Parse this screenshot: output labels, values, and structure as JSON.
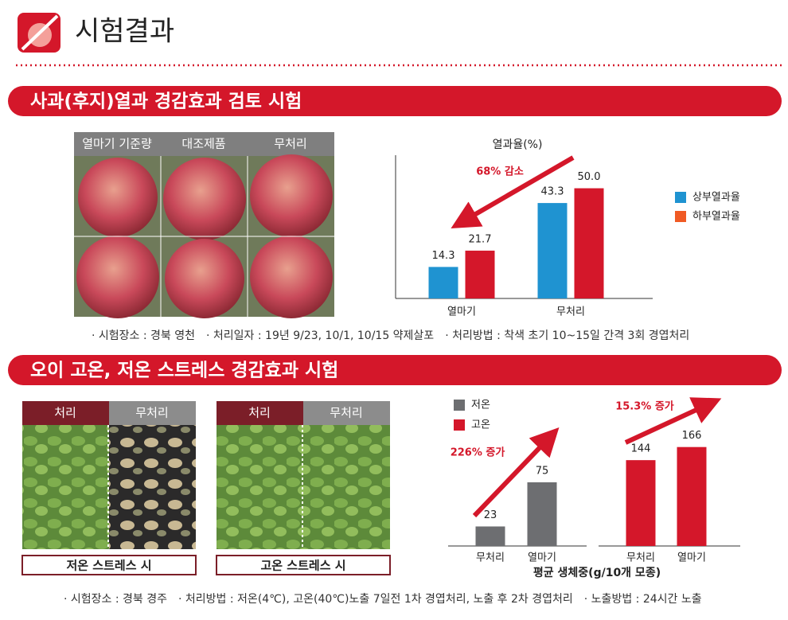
{
  "header": {
    "title": "시험결과"
  },
  "sections": [
    {
      "title": "사과(후지)열과 경감효과 검토 시험",
      "photo_labels": [
        "열마기 기준량",
        "대조제품",
        "무처리"
      ],
      "notes": [
        "· 시험장소 : 경북 영천",
        "· 처리일자 : 19년 9/23, 10/1, 10/15 약제살포",
        "· 처리방법 : 착색 초기 10~15일 간격 3회 경엽처리"
      ]
    },
    {
      "title": "오이 고온, 저온 스트레스 경감효과 시험",
      "photo_panels": [
        {
          "tabs": [
            "처리",
            "무처리"
          ],
          "caption": "저온 스트레스 시"
        },
        {
          "tabs": [
            "처리",
            "무처리"
          ],
          "caption": "고온 스트레스 시"
        }
      ],
      "notes": [
        "· 시험장소 : 경북 경주",
        "· 처리방법 : 저온(4℃), 고온(40℃)노출 7일전 1차 경엽처리, 노출 후 2차 경엽처리",
        "· 노출방법 : 24시간 노출"
      ]
    }
  ],
  "chart_data": [
    {
      "type": "bar",
      "title": "열과율(%)",
      "categories": [
        "열마기",
        "무처리"
      ],
      "series": [
        {
          "name": "상부열과율",
          "color": "#1f93d1",
          "values": [
            14.3,
            43.3
          ]
        },
        {
          "name": "하부열과율",
          "color": "#d4172a",
          "legend_color": "#f05a24",
          "values": [
            21.7,
            50
          ],
          "value_labels": [
            "21.7",
            "50.0"
          ]
        }
      ],
      "ylim": [
        0,
        65
      ],
      "annotation": "68% 감소"
    },
    {
      "type": "bar",
      "categories": [
        "무처리",
        "열마기"
      ],
      "series": [
        {
          "name": "저온",
          "color": "#6d6e71",
          "values": [
            23,
            75
          ]
        }
      ],
      "ylim": [
        0,
        165
      ],
      "annotation": "226% 증가"
    },
    {
      "type": "bar",
      "categories": [
        "무처리",
        "열마기"
      ],
      "series": [
        {
          "name": "고온",
          "color": "#d4172a",
          "values": [
            144,
            166
          ]
        }
      ],
      "ylim": [
        0,
        235
      ],
      "annotation": "15.3% 증가",
      "xlabel": "평균 생체중(g/10개 모종)"
    }
  ]
}
